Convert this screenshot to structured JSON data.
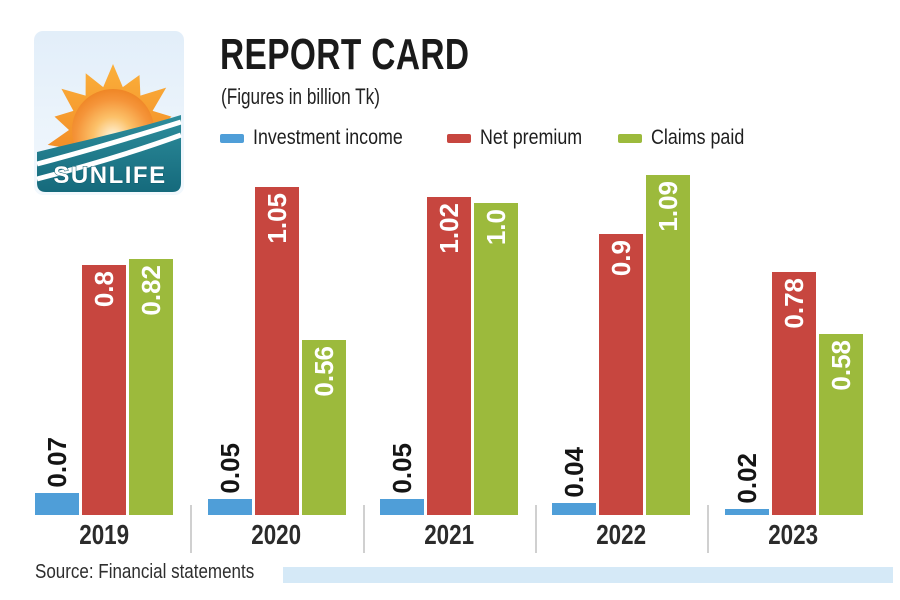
{
  "brand": {
    "name": "SUNLIFE"
  },
  "header": {
    "title": "REPORT CARD",
    "subtitle": "(Figures in billion Tk)"
  },
  "chart_data": {
    "type": "bar",
    "title": "REPORT CARD",
    "unit": "billion Tk",
    "categories": [
      "2019",
      "2020",
      "2021",
      "2022",
      "2023"
    ],
    "series": [
      {
        "name": "Investment income",
        "color": "#4f9ed8",
        "values": [
          0.07,
          0.05,
          0.05,
          0.04,
          0.02
        ],
        "labels": [
          "0.07",
          "0.05",
          "0.05",
          "0.04",
          "0.02"
        ],
        "label_style": "dark-above"
      },
      {
        "name": "Net premium",
        "color": "#c7463f",
        "values": [
          0.8,
          1.05,
          1.02,
          0.9,
          0.78
        ],
        "labels": [
          "0.8",
          "1.05",
          "1.02",
          "0.9",
          "0.78"
        ],
        "label_style": "light-inside"
      },
      {
        "name": "Claims paid",
        "color": "#9cba3c",
        "values": [
          0.82,
          0.56,
          1.0,
          1.09,
          0.58
        ],
        "labels": [
          "0.82",
          "0.56",
          "1.0",
          "1.09",
          "0.58"
        ],
        "label_style": "light-inside"
      }
    ],
    "ylim": [
      0,
      1.15
    ],
    "grid": false,
    "legend_position": "top",
    "value_labels_rotated": true
  },
  "footer": {
    "source": "Source: Financial statements",
    "strip_color": "#d5e9f7"
  }
}
